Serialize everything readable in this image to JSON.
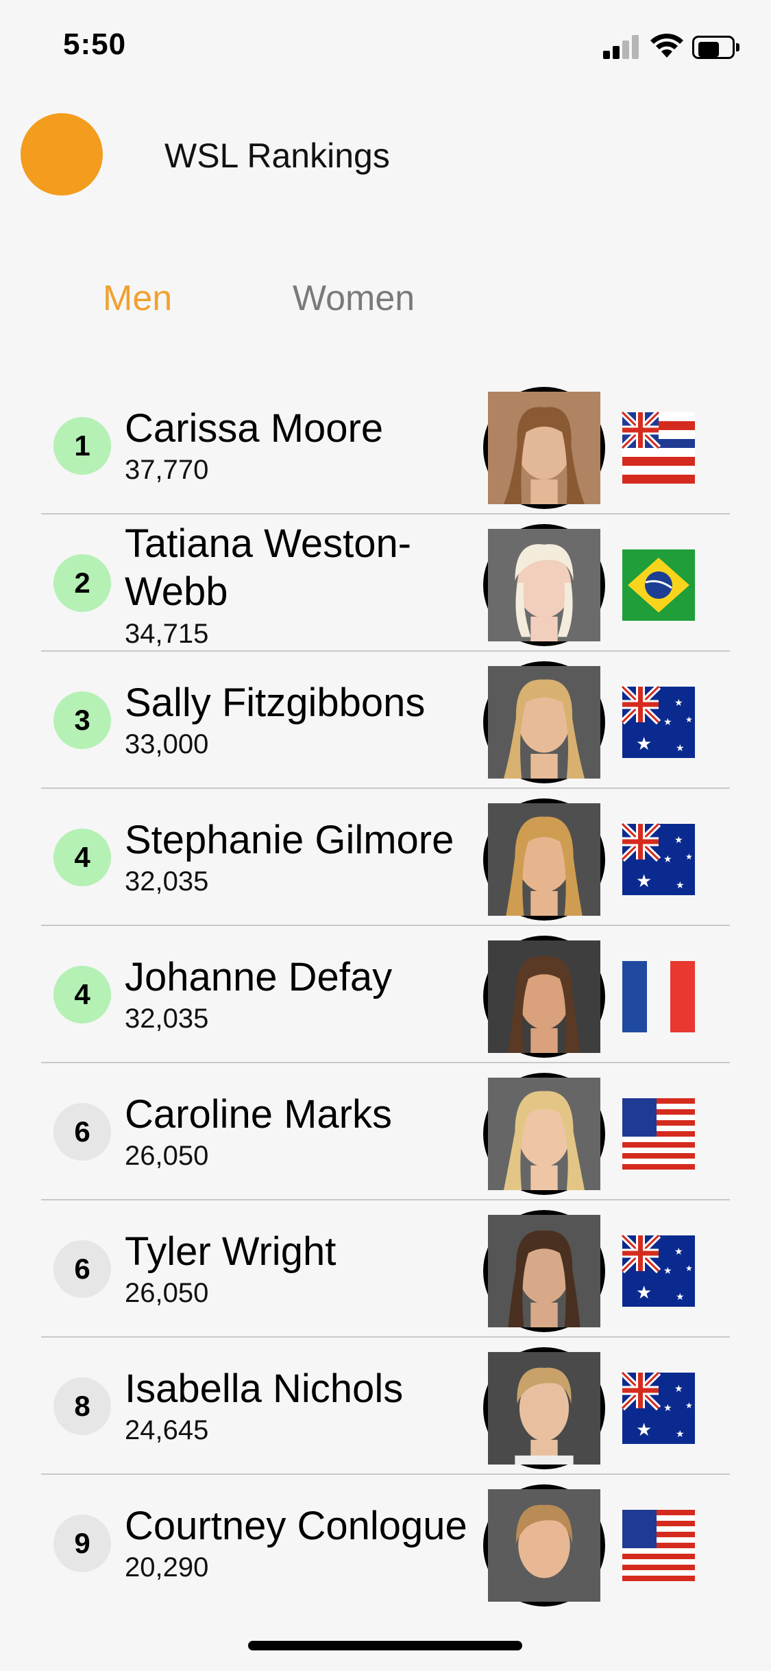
{
  "status_bar": {
    "time": "5:50"
  },
  "header": {
    "title": "WSL Rankings"
  },
  "tabs": [
    {
      "label": "Men",
      "active": true
    },
    {
      "label": "Women",
      "active": false
    }
  ],
  "colors": {
    "accent": "#f0a130",
    "avatar": "#f39c1d",
    "top_rank": "#b5f0b5",
    "other_rank": "#e6e6e6"
  },
  "rankings": [
    {
      "rank": "1",
      "name": "Carissa Moore",
      "points": "37,770",
      "flag": "hawaii-flag-icon"
    },
    {
      "rank": "2",
      "name": "Tatiana Weston-Webb",
      "points": "34,715",
      "flag": "brazil-flag-icon"
    },
    {
      "rank": "3",
      "name": "Sally Fitzgibbons",
      "points": "33,000",
      "flag": "australia-flag-icon"
    },
    {
      "rank": "4",
      "name": "Stephanie Gilmore",
      "points": "32,035",
      "flag": "australia-flag-icon"
    },
    {
      "rank": "4",
      "name": "Johanne Defay",
      "points": "32,035",
      "flag": "france-flag-icon"
    },
    {
      "rank": "6",
      "name": "Caroline Marks",
      "points": "26,050",
      "flag": "usa-flag-icon"
    },
    {
      "rank": "6",
      "name": "Tyler Wright",
      "points": "26,050",
      "flag": "australia-flag-icon"
    },
    {
      "rank": "8",
      "name": "Isabella Nichols",
      "points": "24,645",
      "flag": "australia-flag-icon"
    },
    {
      "rank": "9",
      "name": "Courtney Conlogue",
      "points": "20,290",
      "flag": "usa-flag-icon"
    }
  ]
}
